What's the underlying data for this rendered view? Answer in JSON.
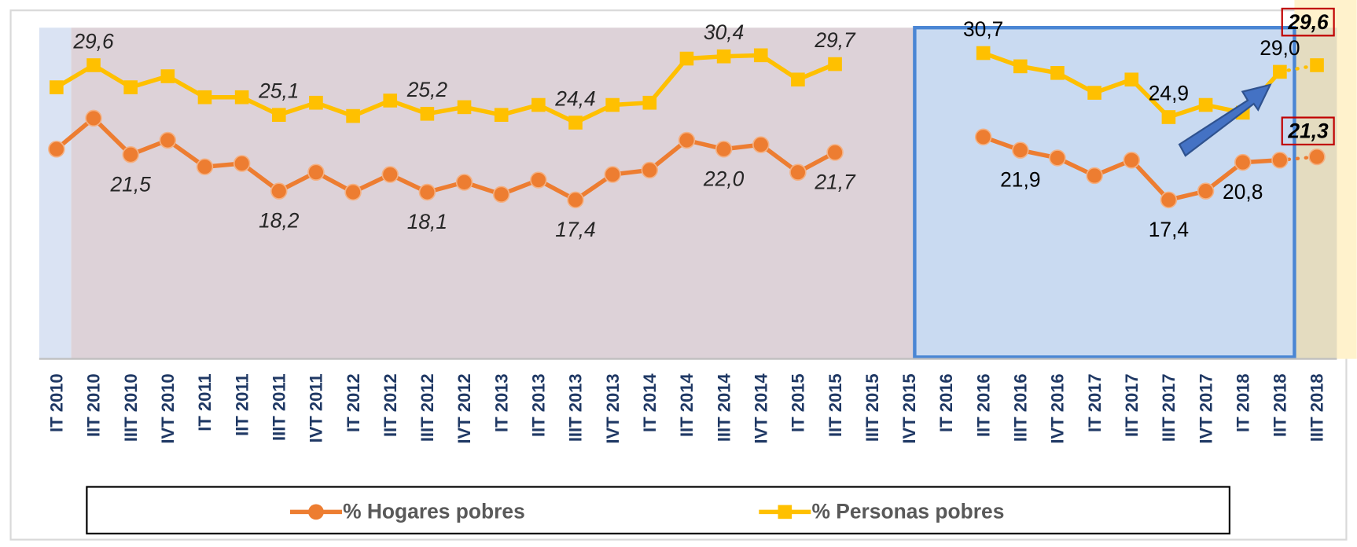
{
  "chart_data": {
    "type": "line",
    "categories": [
      "IT 2010",
      "IIT 2010",
      "IIIT 2010",
      "IVT 2010",
      "IT 2011",
      "IIT 2011",
      "IIIT 2011",
      "IVT 2011",
      "IT 2012",
      "IIT 2012",
      "IIIT 2012",
      "IVT 2012",
      "IT 2013",
      "IIT 2013",
      "IIIT 2013",
      "IVT 2013",
      "IT 2014",
      "IIT 2014",
      "IIIT 2014",
      "IVT 2014",
      "IT 2015",
      "IIT 2015",
      "IIIT 2015",
      "IVT 2015",
      "IT 2016",
      "IIT 2016",
      "IIIT 2016",
      "IVT 2016",
      "IT 2017",
      "IIT 2017",
      "IIIT 2017",
      "IVT 2017",
      "IT 2018",
      "IIT 2018",
      "IIIT 2018"
    ],
    "series": [
      {
        "name": "% Hogares pobres",
        "color": "#ed7d31",
        "marker": "circle",
        "values": [
          22.0,
          24.8,
          21.5,
          22.8,
          20.4,
          20.7,
          18.2,
          19.9,
          18.1,
          19.7,
          18.1,
          19.0,
          17.9,
          19.2,
          17.4,
          19.7,
          20.1,
          22.8,
          22.0,
          22.4,
          19.9,
          21.7,
          null,
          null,
          null,
          23.1,
          21.9,
          21.2,
          19.6,
          21.0,
          17.4,
          18.2,
          20.8,
          21.0,
          21.3
        ],
        "value_labels": [
          null,
          null,
          "21,5",
          null,
          null,
          null,
          "18,2",
          null,
          null,
          null,
          "18,1",
          null,
          null,
          null,
          "17,4",
          null,
          null,
          null,
          "22,0",
          null,
          null,
          "21,7",
          null,
          null,
          null,
          null,
          "21,9",
          null,
          null,
          null,
          "17,4",
          null,
          "20,8",
          null,
          "21,3"
        ]
      },
      {
        "name": "% Personas pobres",
        "color": "#ffc000",
        "marker": "square",
        "values": [
          27.6,
          29.6,
          27.6,
          28.6,
          26.7,
          26.7,
          25.1,
          26.2,
          25.0,
          26.4,
          25.2,
          25.8,
          25.1,
          26.0,
          24.4,
          26.0,
          26.2,
          30.2,
          30.4,
          30.5,
          28.3,
          29.7,
          null,
          null,
          null,
          30.7,
          29.5,
          28.9,
          27.1,
          28.3,
          24.9,
          26.0,
          25.3,
          29.0,
          29.6
        ],
        "value_labels": [
          null,
          "29,6",
          null,
          null,
          null,
          null,
          "25,1",
          null,
          null,
          null,
          "25,2",
          null,
          null,
          null,
          "24,4",
          null,
          null,
          null,
          "30,4",
          null,
          null,
          "29,7",
          null,
          null,
          null,
          "30,7",
          null,
          null,
          null,
          null,
          "24,9",
          null,
          null,
          "29,0",
          "29,6"
        ]
      }
    ],
    "ylim": [
      3,
      33
    ],
    "last_segment": "dotted"
  }
}
